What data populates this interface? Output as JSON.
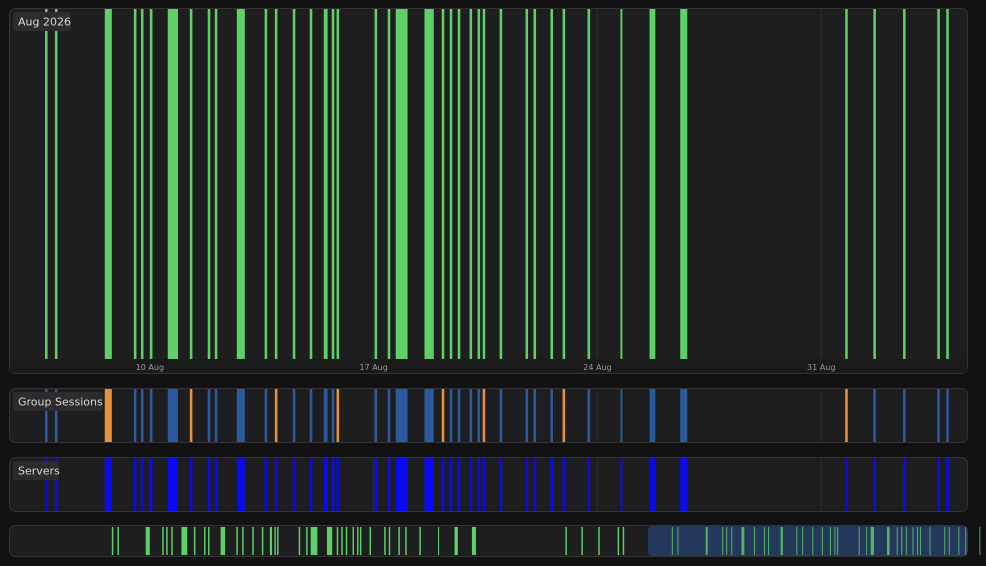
{
  "timeline": {
    "month_label": "Aug 2026",
    "xlim": [
      5.625,
      35.56
    ],
    "xticks": [
      {
        "value": 10,
        "label": "10 Aug"
      },
      {
        "value": 17,
        "label": "17 Aug"
      },
      {
        "value": 24,
        "label": "24 Aug"
      },
      {
        "value": 31,
        "label": "31 Aug"
      }
    ],
    "colors": {
      "sessions": "#5fd068",
      "group": "#2b5a9c",
      "group_accent": "#e8903a",
      "servers": "#0a0af0",
      "overview_window": "#23385a"
    },
    "events": [
      [
        6.72,
        6.8
      ],
      [
        7.03,
        7.11
      ],
      [
        8.59,
        8.81
      ],
      [
        9.5,
        9.58
      ],
      [
        9.72,
        9.8
      ],
      [
        10.0,
        10.08
      ],
      [
        10.56,
        10.88
      ],
      [
        11.25,
        11.33
      ],
      [
        11.81,
        11.89
      ],
      [
        12.03,
        12.11
      ],
      [
        12.72,
        12.97
      ],
      [
        13.59,
        13.67
      ],
      [
        13.91,
        13.99
      ],
      [
        14.47,
        14.55
      ],
      [
        15.0,
        15.08
      ],
      [
        15.44,
        15.56
      ],
      [
        15.69,
        15.77
      ],
      [
        15.84,
        15.92
      ],
      [
        17.03,
        17.11
      ],
      [
        17.44,
        17.52
      ],
      [
        17.69,
        18.06
      ],
      [
        18.59,
        18.88
      ],
      [
        19.13,
        19.21
      ],
      [
        19.38,
        19.46
      ],
      [
        19.63,
        19.71
      ],
      [
        20.0,
        20.08
      ],
      [
        20.25,
        20.33
      ],
      [
        20.41,
        20.49
      ],
      [
        20.94,
        21.02
      ],
      [
        21.75,
        21.83
      ],
      [
        22.0,
        22.08
      ],
      [
        22.53,
        22.61
      ],
      [
        22.91,
        22.99
      ],
      [
        23.69,
        23.77
      ],
      [
        24.72,
        24.78
      ],
      [
        25.63,
        25.81
      ],
      [
        26.59,
        26.81
      ],
      [
        31.75,
        31.83
      ],
      [
        32.63,
        32.71
      ],
      [
        33.56,
        33.64
      ],
      [
        34.63,
        34.71
      ],
      [
        34.91,
        34.99
      ]
    ]
  },
  "lanes": {
    "group": "Group Sessions",
    "servers": "Servers"
  }
}
